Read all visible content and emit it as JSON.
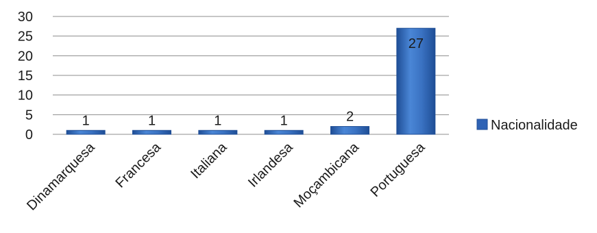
{
  "chart_data": {
    "type": "bar",
    "categories": [
      "Dinamarquesa",
      "Francesa",
      "Italiana",
      "Irlandesa",
      "Moçambicana",
      "Portuguesa"
    ],
    "series": [
      {
        "name": "Nacionalidade",
        "values": [
          1,
          1,
          1,
          1,
          2,
          27
        ]
      }
    ],
    "data_labels": [
      "1",
      "1",
      "1",
      "1",
      "2",
      "27"
    ],
    "title": "",
    "xlabel": "",
    "ylabel": "",
    "ylim": [
      0,
      30
    ],
    "yticks": [
      0,
      5,
      10,
      15,
      20,
      25,
      30
    ],
    "grid": true,
    "legend_position": "right",
    "colors": {
      "bar": "#3a72c2",
      "bar_dark": "#1f4e96",
      "grid": "#8c8c8c",
      "legend_swatch": "#2f63b5"
    }
  }
}
